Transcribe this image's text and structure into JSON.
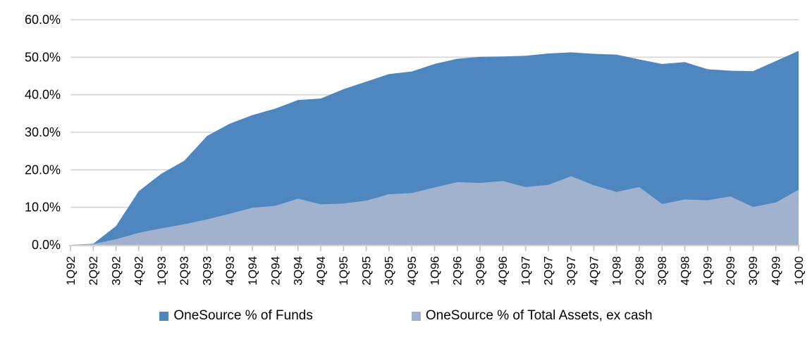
{
  "chart_data": {
    "type": "area",
    "mode": "overlapping",
    "title": "",
    "xlabel": "",
    "ylabel": "",
    "categories": [
      "1Q92",
      "2Q92",
      "3Q92",
      "4Q92",
      "1Q93",
      "2Q93",
      "3Q93",
      "4Q93",
      "1Q94",
      "2Q94",
      "3Q94",
      "4Q94",
      "1Q95",
      "2Q95",
      "3Q95",
      "4Q95",
      "1Q96",
      "2Q96",
      "3Q96",
      "4Q96",
      "1Q97",
      "2Q97",
      "3Q97",
      "4Q97",
      "1Q98",
      "2Q98",
      "3Q98",
      "4Q98",
      "1Q99",
      "2Q99",
      "3Q99",
      "4Q99",
      "1Q00"
    ],
    "series": [
      {
        "name": "OneSource % of Funds",
        "color": "#4E86C0",
        "values": [
          0.0,
          0.3,
          5.0,
          14.3,
          19.0,
          22.4,
          29.0,
          32.3,
          34.6,
          36.3,
          38.6,
          39.0,
          41.5,
          43.5,
          45.5,
          46.2,
          48.2,
          49.6,
          50.1,
          50.2,
          50.4,
          51.0,
          51.3,
          50.9,
          50.7,
          49.4,
          48.2,
          48.7,
          46.8,
          46.4,
          46.3,
          49.0,
          51.7
        ]
      },
      {
        "name": "OneSource % of Total Assets, ex cash",
        "color": "#A0B2CE",
        "values": [
          0.0,
          0.2,
          1.5,
          3.2,
          4.4,
          5.5,
          6.8,
          8.3,
          9.9,
          10.4,
          12.3,
          10.8,
          11.0,
          11.8,
          13.5,
          13.8,
          15.3,
          16.7,
          16.5,
          17.0,
          15.4,
          16.0,
          18.3,
          15.9,
          14.1,
          15.4,
          10.9,
          12.1,
          11.9,
          12.9,
          10.1,
          11.3,
          14.7
        ]
      }
    ],
    "y_ticks": [
      "0.0%",
      "10.0%",
      "20.0%",
      "30.0%",
      "40.0%",
      "50.0%",
      "60.0%"
    ],
    "ylim": [
      0,
      60
    ],
    "grid": "horizontal",
    "gridline_color": "#D9D9D9",
    "axis_line_color": "#C3C3C3",
    "text_color": "#000000",
    "legend_position": "bottom",
    "x_label_rotation": -90
  }
}
